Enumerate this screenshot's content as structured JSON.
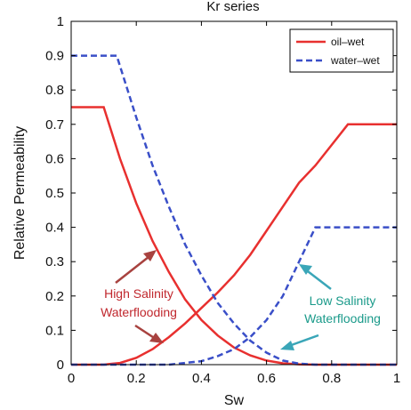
{
  "chart_data": {
    "type": "line",
    "title": "Kr series",
    "xlabel": "Sw",
    "ylabel": "Relative Permeability",
    "xlim": [
      0,
      1
    ],
    "ylim": [
      0,
      1
    ],
    "xticks": [
      "0",
      "0.2",
      "0.4",
      "0.6",
      "0.8",
      "1"
    ],
    "yticks": [
      "0",
      "0.1",
      "0.2",
      "0.3",
      "0.4",
      "0.5",
      "0.6",
      "0.7",
      "0.8",
      "0.9",
      "1"
    ],
    "grid": false,
    "legend_position": "top-right",
    "series": [
      {
        "name": "oil–wet",
        "style": "solid",
        "color": "#e8302f",
        "curves": [
          {
            "x": [
              0,
              0.1,
              0.15,
              0.2,
              0.25,
              0.3,
              0.35,
              0.4,
              0.45,
              0.5,
              0.55,
              0.6,
              0.65,
              0.7,
              0.75,
              0.8,
              0.85,
              1.0
            ],
            "y": [
              0.75,
              0.75,
              0.6,
              0.47,
              0.36,
              0.27,
              0.19,
              0.13,
              0.085,
              0.05,
              0.027,
              0.012,
              0.004,
              0.001,
              0,
              0,
              0,
              0
            ]
          },
          {
            "x": [
              0,
              0.1,
              0.15,
              0.2,
              0.25,
              0.3,
              0.35,
              0.4,
              0.45,
              0.5,
              0.55,
              0.6,
              0.65,
              0.7,
              0.75,
              0.8,
              0.85,
              1.0
            ],
            "y": [
              0,
              0,
              0.005,
              0.02,
              0.045,
              0.08,
              0.12,
              0.165,
              0.21,
              0.26,
              0.32,
              0.39,
              0.46,
              0.53,
              0.58,
              0.64,
              0.7,
              0.7
            ]
          }
        ]
      },
      {
        "name": "water–wet",
        "style": "dashed",
        "color": "#3a4fc8",
        "curves": [
          {
            "x": [
              0,
              0.12,
              0.14,
              0.2,
              0.25,
              0.3,
              0.35,
              0.4,
              0.45,
              0.5,
              0.55,
              0.6,
              0.65,
              0.7,
              0.75,
              0.8,
              1.0
            ],
            "y": [
              0.9,
              0.9,
              0.9,
              0.72,
              0.58,
              0.46,
              0.35,
              0.26,
              0.18,
              0.12,
              0.07,
              0.035,
              0.012,
              0.003,
              0,
              0,
              0
            ]
          },
          {
            "x": [
              0,
              0.3,
              0.4,
              0.45,
              0.5,
              0.55,
              0.6,
              0.65,
              0.7,
              0.75,
              0.8,
              1.0
            ],
            "y": [
              0,
              0,
              0.01,
              0.025,
              0.045,
              0.08,
              0.13,
              0.2,
              0.3,
              0.4,
              0.4,
              0.4
            ]
          }
        ]
      }
    ],
    "annotations": [
      {
        "text": [
          "High Salinity",
          "Waterflooding"
        ],
        "color": "#c0272d"
      },
      {
        "text": [
          "Low Salinity",
          "Waterflooding"
        ],
        "color": "#1a9a8a"
      }
    ]
  }
}
